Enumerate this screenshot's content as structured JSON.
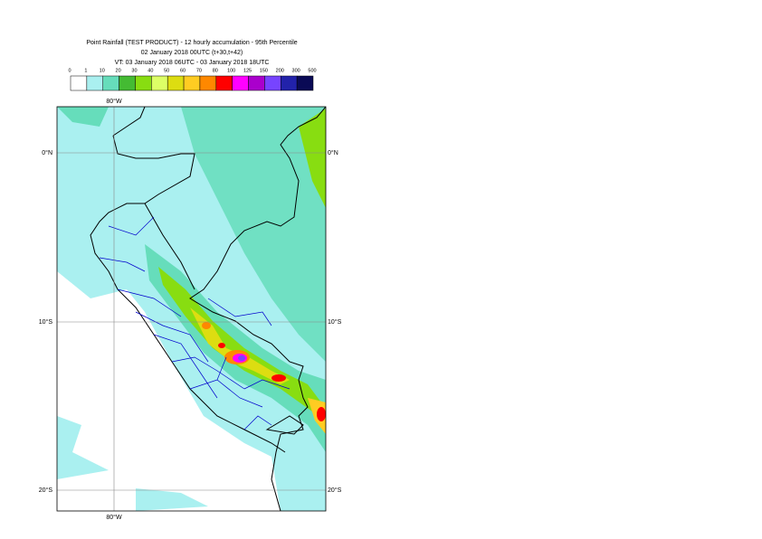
{
  "header": {
    "lines": [
      "Point Rainfall (TEST PRODUCT) - 12 hourly accumulation - 95th Percentile",
      "02 January 2018 00UTC (t+30,t+42)",
      "VT: 03 January 2018 06UTC - 03 January 2018 18UTC"
    ]
  },
  "legend": {
    "labels": [
      0,
      1,
      10,
      20,
      30,
      40,
      50,
      60,
      70,
      80,
      100,
      125,
      150,
      200,
      300,
      500
    ],
    "colors": [
      "#ffffff",
      "#aaf0f0",
      "#66ddbb",
      "#44bb33",
      "#88dd11",
      "#ddff66",
      "#dddd11",
      "#ffcc22",
      "#ff8800",
      "#ff0000",
      "#ff00ff",
      "#aa00cc",
      "#7744ff",
      "#2222aa",
      "#0a0a55"
    ]
  },
  "map": {
    "lon_labels": [
      "80°W",
      "80°W"
    ],
    "lat_labels_left": [
      "0°N",
      "10°S",
      "20°S"
    ],
    "lat_labels_right": [
      "0°N",
      "10°S",
      "20°S"
    ]
  }
}
